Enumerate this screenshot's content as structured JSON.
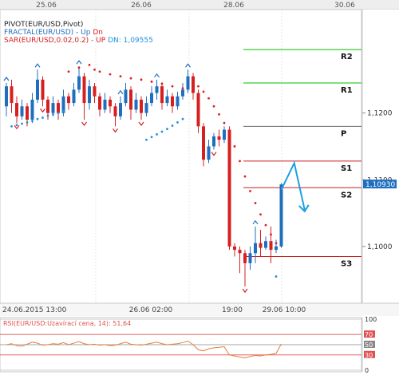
{
  "top_dates": [
    "25.06",
    "26.06",
    "28.06",
    "30.06"
  ],
  "bottom_dates": [
    "24.06.2015 13:00",
    "26.06 02:00",
    "19:00",
    "29.06 10:00"
  ],
  "legend": {
    "pivot": "PIVOT(EUR/USD,Pivot)",
    "fractal_name": "FRACTAL(EUR/USD)",
    "fractal_up": "Up",
    "fractal_dn": "Dn",
    "sar_name": "SAR(EUR/USD,0.02,0.2)",
    "sar_up": "UP",
    "sar_dn": "DN: 1,09555"
  },
  "price_ticks": [
    "1,1200",
    "1,1100",
    "1,1000"
  ],
  "last_price": "1,10930",
  "rsi_label": "RSI(EUR/USD:Uzavírací cena, 14): 51,64",
  "rsi_ticks": [
    "100",
    "70",
    "50",
    "30",
    "0"
  ],
  "colors": {
    "bull": "#1f6fbf",
    "bear": "#d62020",
    "sar_up": "#d62020",
    "sar_dn": "#1e90e0",
    "pivot_r": "#00c000",
    "pivot_p": "#666666",
    "pivot_s": "#cc2020",
    "arrow": "#1e9fdf",
    "rsi_line": "#e08040"
  },
  "chart_data": {
    "type": "candlestick",
    "symbol": "EUR/USD",
    "ylim": [
      1.0915,
      1.1355
    ],
    "pivots": [
      {
        "name": "R2",
        "value": 1.1295
      },
      {
        "name": "R1",
        "value": 1.1245
      },
      {
        "name": "P",
        "value": 1.118
      },
      {
        "name": "S1",
        "value": 1.1128
      },
      {
        "name": "S2",
        "value": 1.1088
      },
      {
        "name": "S3",
        "value": 1.0985
      }
    ],
    "candles": [
      [
        1.121,
        1.124,
        1.1245,
        1.1195
      ],
      [
        1.124,
        1.1215,
        1.125,
        1.12
      ],
      [
        1.1215,
        1.1195,
        1.1225,
        1.1185
      ],
      [
        1.1195,
        1.121,
        1.122,
        1.119
      ],
      [
        1.121,
        1.119,
        1.1215,
        1.118
      ],
      [
        1.119,
        1.122,
        1.123,
        1.1185
      ],
      [
        1.122,
        1.125,
        1.1265,
        1.1215
      ],
      [
        1.125,
        1.122,
        1.1255,
        1.121
      ],
      [
        1.122,
        1.12,
        1.1225,
        1.119
      ],
      [
        1.12,
        1.1215,
        1.1225,
        1.1195
      ],
      [
        1.1215,
        1.12,
        1.122,
        1.119
      ],
      [
        1.12,
        1.1225,
        1.1235,
        1.1195
      ],
      [
        1.1225,
        1.1215,
        1.123,
        1.1205
      ],
      [
        1.1215,
        1.1235,
        1.1245,
        1.121
      ],
      [
        1.1235,
        1.1255,
        1.127,
        1.123
      ],
      [
        1.1255,
        1.1215,
        1.126,
        1.119
      ],
      [
        1.1215,
        1.124,
        1.125,
        1.1205
      ],
      [
        1.124,
        1.1225,
        1.1245,
        1.1215
      ],
      [
        1.1225,
        1.1205,
        1.123,
        1.1195
      ],
      [
        1.1205,
        1.122,
        1.123,
        1.12
      ],
      [
        1.122,
        1.121,
        1.1225,
        1.12
      ],
      [
        1.121,
        1.1195,
        1.1215,
        1.118
      ],
      [
        1.1195,
        1.1215,
        1.1225,
        1.119
      ],
      [
        1.1215,
        1.1235,
        1.1245,
        1.121
      ],
      [
        1.1235,
        1.1205,
        1.124,
        1.119
      ],
      [
        1.1205,
        1.122,
        1.123,
        1.12
      ],
      [
        1.122,
        1.12,
        1.1225,
        1.119
      ],
      [
        1.12,
        1.1215,
        1.1225,
        1.1195
      ],
      [
        1.1215,
        1.123,
        1.124,
        1.121
      ],
      [
        1.123,
        1.124,
        1.125,
        1.122
      ],
      [
        1.124,
        1.1215,
        1.1245,
        1.1205
      ],
      [
        1.1215,
        1.1225,
        1.1235,
        1.121
      ],
      [
        1.1225,
        1.121,
        1.123,
        1.12
      ],
      [
        1.121,
        1.1225,
        1.1232,
        1.1205
      ],
      [
        1.1225,
        1.1235,
        1.1245,
        1.122
      ],
      [
        1.1235,
        1.1255,
        1.1265,
        1.123
      ],
      [
        1.1255,
        1.123,
        1.126,
        1.122
      ],
      [
        1.123,
        1.118,
        1.1235,
        1.117
      ],
      [
        1.118,
        1.113,
        1.1185,
        1.112
      ],
      [
        1.113,
        1.115,
        1.116,
        1.1125
      ],
      [
        1.115,
        1.1165,
        1.117,
        1.1145
      ],
      [
        1.1165,
        1.116,
        1.1175,
        1.115
      ],
      [
        1.116,
        1.1175,
        1.118,
        1.1155
      ],
      [
        1.1175,
        1.1,
        1.118,
        1.0995
      ],
      [
        1.1,
        1.0995,
        1.1005,
        1.0985
      ],
      [
        1.0995,
        1.099,
        1.1,
        1.096
      ],
      [
        1.099,
        1.0975,
        1.0995,
        1.094
      ],
      [
        1.0975,
        1.099,
        1.1,
        1.0965
      ],
      [
        1.099,
        1.1005,
        1.103,
        1.0975
      ],
      [
        1.1005,
        1.0998,
        1.1025,
        1.0985
      ],
      [
        1.0998,
        1.1008,
        1.1015,
        1.0995
      ],
      [
        1.1008,
        1.0995,
        1.103,
        1.0975
      ],
      [
        1.0995,
        1.1,
        1.101,
        1.099
      ],
      [
        1.1,
        1.1093,
        1.1095,
        1.0998
      ]
    ],
    "sar_up": [
      [
        12,
        1.1262
      ],
      [
        14,
        1.1268
      ],
      [
        16,
        1.1272
      ],
      [
        17,
        1.1265
      ],
      [
        18,
        1.1262
      ],
      [
        20,
        1.1258
      ],
      [
        22,
        1.1255
      ],
      [
        24,
        1.1252
      ],
      [
        26,
        1.125
      ],
      [
        28,
        1.1247
      ],
      [
        30,
        1.1244
      ],
      [
        32,
        1.124
      ],
      [
        34,
        1.1237
      ],
      [
        36,
        1.1245
      ],
      [
        37,
        1.124
      ],
      [
        38,
        1.1232
      ],
      [
        39,
        1.1222
      ],
      [
        40,
        1.121
      ],
      [
        41,
        1.1198
      ],
      [
        42,
        1.1185
      ],
      [
        43,
        1.117
      ],
      [
        44,
        1.115
      ],
      [
        45,
        1.1128
      ],
      [
        46,
        1.1105
      ],
      [
        47,
        1.1083
      ],
      [
        48,
        1.1065
      ],
      [
        49,
        1.1048
      ],
      [
        50,
        1.1032
      ],
      [
        51,
        1.1018
      ],
      [
        52,
        1.1005
      ]
    ],
    "sar_dn": [
      [
        1,
        1.118
      ],
      [
        2,
        1.1182
      ],
      [
        3,
        1.1184
      ],
      [
        4,
        1.1186
      ],
      [
        5,
        1.1188
      ],
      [
        6,
        1.1191
      ],
      [
        7,
        1.1193
      ],
      [
        8,
        1.1196
      ],
      [
        9,
        1.1198
      ],
      [
        10,
        1.12
      ],
      [
        11,
        1.1203
      ],
      [
        27,
        1.116
      ],
      [
        28,
        1.1164
      ],
      [
        29,
        1.1168
      ],
      [
        30,
        1.1172
      ],
      [
        31,
        1.1176
      ],
      [
        32,
        1.1181
      ],
      [
        33,
        1.1186
      ],
      [
        34,
        1.1191
      ],
      [
        52,
        1.0955
      ]
    ],
    "fractal_up": [
      0,
      6,
      14,
      22,
      29,
      35,
      48
    ],
    "fractal_dn": [
      2,
      7,
      15,
      21,
      26,
      40,
      46
    ],
    "rsi": [
      50,
      52,
      48,
      47,
      51,
      55,
      53,
      49,
      50,
      52,
      51,
      54,
      50,
      53,
      56,
      52,
      50,
      51,
      49,
      50,
      48,
      49,
      52,
      55,
      51,
      50,
      49,
      51,
      53,
      55,
      52,
      50,
      51,
      52,
      54,
      57,
      50,
      40,
      38,
      42,
      44,
      45,
      46,
      30,
      28,
      26,
      24,
      27,
      29,
      28,
      30,
      31,
      33,
      51.64
    ],
    "forecast_arrow": [
      [
        53,
        1.1085
      ],
      [
        55.5,
        1.1125
      ],
      [
        57.5,
        1.1055
      ]
    ]
  }
}
